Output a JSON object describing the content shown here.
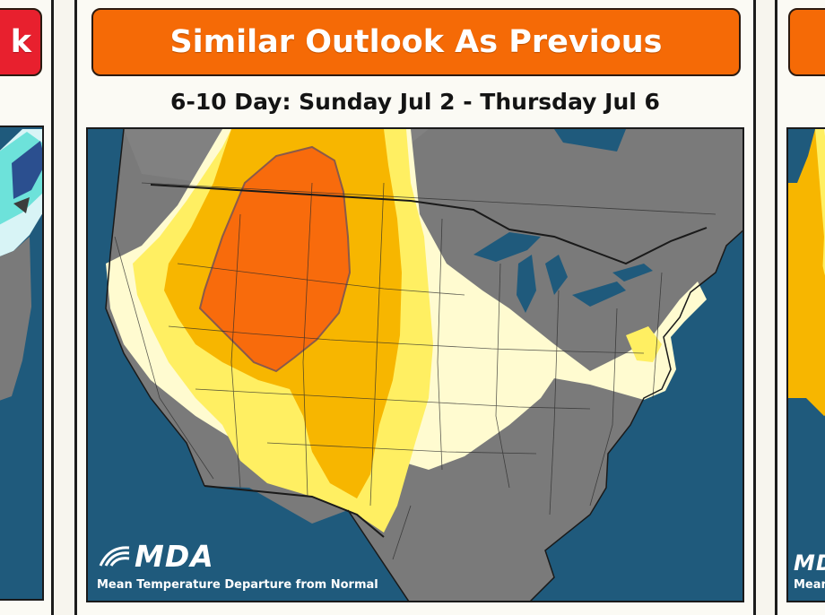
{
  "left_panel": {
    "banner_text": "k",
    "banner_color": "#e8202e"
  },
  "center_panel": {
    "banner_text": "Similar Outlook As Previous",
    "banner_color": "#f56a06",
    "period": "6-10 Day: Sunday Jul 2 - Thursday Jul 6",
    "logo_text": "MDA",
    "caption": "Mean Temperature Departure from Normal"
  },
  "right_panel": {
    "banner_color": "#f56a06",
    "logo_text": "MDA",
    "caption": "Mean"
  },
  "map_colors": {
    "ocean": "#1f5a7c",
    "near_normal": "#7a7a7a",
    "slightly_above": "#fffbd0",
    "above": "#ffef62",
    "well_above": "#f7b600",
    "much_above": "#f86b0c",
    "lakes": "#1f5a7c"
  }
}
